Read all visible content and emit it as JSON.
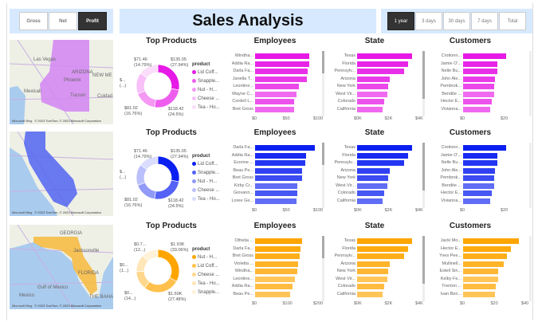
{
  "header": {
    "metric_buttons": [
      {
        "label": "Gross",
        "selected": false
      },
      {
        "label": "Net",
        "selected": false
      },
      {
        "label": "Profit",
        "selected": true
      }
    ],
    "title": "Sales Analysis",
    "period_buttons": [
      {
        "label": "1 year",
        "selected": true
      },
      {
        "label": "3 days",
        "selected": false
      },
      {
        "label": "30 days",
        "selected": false
      },
      {
        "label": "7 days",
        "selected": false
      },
      {
        "label": "Total",
        "selected": false
      }
    ]
  },
  "rows": [
    {
      "color": "#e619e6",
      "map": {
        "state": "Arizona",
        "state_color": "#d48af2",
        "labels": [
          "Las Vegas",
          "ARIZONA",
          "Phoenix",
          "Mexicali",
          "NEW ME",
          "Cuidad Juárez",
          "Tucson"
        ],
        "attribution": "© 2023 TomTom, © 2023 Microsoft Corporation",
        "bing": "Microsoft Bing"
      },
      "donut": {
        "title": "Top Products",
        "legend_title": "product",
        "legend": [
          "Lid Coff...",
          "Snapple...",
          "Nut - H...",
          "Cheese ...",
          "Tea - Ho..."
        ],
        "slices": [
          {
            "pct": 27.94,
            "label": "$135.05",
            "pct_label": "(27.94%)"
          },
          {
            "pct": 24.5,
            "label": "$118.42",
            "pct_label": "(24.5%)"
          },
          {
            "pct": 16.76,
            "label": "$81.02",
            "pct_label": "(16.76%)"
          },
          {
            "pct": 16.01,
            "label": "$...",
            "pct_label": "(...)"
          },
          {
            "pct": 14.79,
            "label": "$71.46",
            "pct_label": "(14.79%)"
          }
        ]
      },
      "employees": {
        "title": "Employees",
        "ticks": [
          "$0",
          "$50",
          "$100"
        ],
        "max": 100,
        "names": [
          "Windha...",
          "Addia Ra...",
          "Darla Fa...",
          "Janella T...",
          "Leontine...",
          "Wayne C...",
          "Cordell L...",
          "Bret Gross"
        ],
        "values": [
          88,
          88,
          86,
          84,
          72,
          68,
          63,
          63
        ]
      },
      "state": {
        "title": "State",
        "ticks": [
          "$0K",
          "$2K",
          "$4K"
        ],
        "max": 4000,
        "names": [
          "Texas",
          "Florida",
          "Pennsylv...",
          "Arizona",
          "New York",
          "West Vir...",
          "Colorado",
          "California"
        ],
        "values": [
          3600,
          3350,
          3050,
          2150,
          2050,
          1950,
          1750,
          1650
        ]
      },
      "customers": {
        "title": "Customers",
        "ticks": [
          "$0",
          "$20"
        ],
        "max": 20,
        "names": [
          "Crotionn...",
          "Jamie O'...",
          "Nelle Bu...",
          "John Ale...",
          "Pembrok...",
          "Bendite ...",
          "Hector E...",
          "Vivianna..."
        ],
        "values": [
          21,
          17,
          17,
          15.8,
          15.3,
          15.3,
          14,
          13.5
        ]
      }
    },
    {
      "color": "#0a1ff0",
      "map": {
        "state": "California",
        "state_color": "#5a6cf0",
        "labels": [],
        "attribution": "© 2023 TomTom, © 2023 Microsoft Corporation",
        "bing": "Microsoft Bing"
      },
      "donut": {
        "title": "Top Products",
        "legend_title": "product",
        "legend": [
          "Lid Coff...",
          "Snapple...",
          "Nut - H...",
          "Cheese ...",
          "Tea - Ho..."
        ],
        "slices": [
          {
            "pct": 27.94,
            "label": "$135.05",
            "pct_label": "(27.94%)"
          },
          {
            "pct": 24.5,
            "label": "$118.42",
            "pct_label": "(24.5%)"
          },
          {
            "pct": 16.76,
            "label": "$81.02",
            "pct_label": "(16.76%)"
          },
          {
            "pct": 16.01,
            "label": "$...",
            "pct_label": "(...)"
          },
          {
            "pct": 14.79,
            "label": "$71.46",
            "pct_label": "(14.79%)"
          }
        ]
      },
      "employees": {
        "title": "Employees",
        "ticks": [
          "$0",
          "$50",
          "$100"
        ],
        "max": 100,
        "names": [
          "Darla Fa...",
          "Addia Ra...",
          "Evonne ...",
          "Beau Pe...",
          "Bret Gross",
          "Kirby Cr...",
          "Giovann...",
          "Loree Ge..."
        ],
        "values": [
          98,
          83,
          82,
          77,
          76,
          69,
          69,
          68
        ]
      },
      "state": {
        "title": "State",
        "ticks": [
          "$0K",
          "$2K",
          "$4K"
        ],
        "max": 4000,
        "names": [
          "Texas",
          "Florida",
          "Pennsylv...",
          "Arizona",
          "New York",
          "West Vir...",
          "Colorado",
          "California"
        ],
        "values": [
          3600,
          3350,
          3050,
          2150,
          2050,
          1950,
          1750,
          1650
        ]
      },
      "customers": {
        "title": "Customers",
        "ticks": [
          "$0",
          "$20"
        ],
        "max": 20,
        "names": [
          "Crotionn...",
          "Jamie O'...",
          "Nelle Bu...",
          "John Ale...",
          "Pembrok...",
          "Bendite ...",
          "Hector E...",
          "Vivianna..."
        ],
        "values": [
          21,
          17,
          17,
          15.8,
          15.3,
          15.3,
          14,
          13.5
        ]
      }
    },
    {
      "color": "#ffa500",
      "map": {
        "state": "Florida",
        "state_color": "#f6bb45",
        "labels": [
          "GEORGIA",
          "Jacksonville",
          "FLORIDA",
          "Gulf of Mexico",
          "Mexico",
          "THE BAHA"
        ],
        "attribution": "© 2023 TomTom, © 2023 Microsoft Corporation",
        "bing": "Microsoft Bing"
      },
      "donut": {
        "title": "Top Products",
        "legend_title": "product",
        "legend": [
          "Nut - H...",
          "Lid Coff...",
          "Cheese ...",
          "Tea - Ho...",
          "Snapple..."
        ],
        "slices": [
          {
            "pct": 33.06,
            "label": "$1.93K",
            "pct_label": "(33.06%)"
          },
          {
            "pct": 27.48,
            "label": "$1.60K",
            "pct_label": "(27.48%)"
          },
          {
            "pct": 14,
            "label": "$0...",
            "pct_label": "(14...)"
          },
          {
            "pct": 13,
            "label": "$0...",
            "pct_label": "(1...)"
          },
          {
            "pct": 12.46,
            "label": "$0.7...",
            "pct_label": "(12...)"
          }
        ]
      },
      "employees": {
        "title": "Employees",
        "ticks": [
          "$0",
          "$100",
          "$200"
        ],
        "max": 200,
        "names": [
          "Othelia ...",
          "Darla Fa...",
          "Bret Gross",
          "Violetta ...",
          "Windha...",
          "Leontine...",
          "Addia Ra...",
          "Beau Pe..."
        ],
        "values": [
          152,
          148,
          145,
          141,
          138,
          130,
          123,
          115
        ]
      },
      "state": {
        "title": "State",
        "ticks": [
          "$0K",
          "$2K",
          "$4K"
        ],
        "max": 4000,
        "names": [
          "Texas",
          "Florida",
          "Pennsylv...",
          "Arizona",
          "New York",
          "West Vir...",
          "Colorado",
          "California"
        ],
        "values": [
          3600,
          3350,
          3050,
          2150,
          2050,
          1950,
          1750,
          1650
        ]
      },
      "customers": {
        "title": "Customers",
        "ticks": [
          "$0",
          "$20",
          "$40"
        ],
        "max": 40,
        "names": [
          "Jacki Mo...",
          "Hector E...",
          "Yves Pee...",
          "Mullinell...",
          "Estell Sin...",
          "Kelby Fe...",
          "Trenton ...",
          "Ivan Ben..."
        ],
        "values": [
          36.3,
          31.3,
          28.5,
          26.3,
          22.6,
          22.6,
          21.4,
          20.7
        ]
      }
    }
  ]
}
